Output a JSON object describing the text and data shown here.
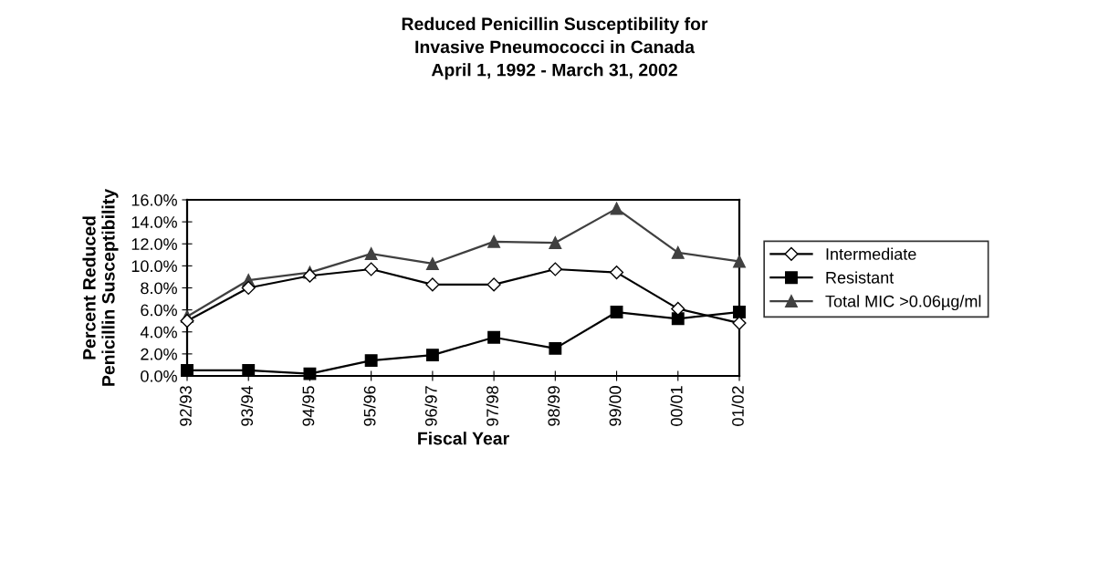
{
  "chart_data": {
    "type": "line",
    "title": "Reduced Penicillin Susceptibility for\nInvasive Pneumococci in Canada\nApril 1, 1992 - March 31, 2002",
    "xlabel": "Fiscal Year",
    "ylabel": "Percent Reduced\nPenicillin Susceptibility",
    "categories": [
      "92/93",
      "93/94",
      "94/95",
      "95/96",
      "96/97",
      "97/98",
      "98/99",
      "99/00",
      "00/01",
      "01/02"
    ],
    "series": [
      {
        "name": "Intermediate",
        "color": "#000000",
        "marker": "diamond",
        "values": [
          5.0,
          8.0,
          9.1,
          9.7,
          8.3,
          8.3,
          9.7,
          9.4,
          6.1,
          4.8
        ]
      },
      {
        "name": "Resistant",
        "color": "#000000",
        "marker": "square",
        "values": [
          0.5,
          0.5,
          0.2,
          1.4,
          1.9,
          3.5,
          2.5,
          5.8,
          5.2,
          5.8
        ]
      },
      {
        "name": "Total MIC >0.06µg/ml",
        "color": "#404040",
        "marker": "triangle",
        "values": [
          5.4,
          8.7,
          9.4,
          11.1,
          10.2,
          12.2,
          12.1,
          15.2,
          11.2,
          10.4
        ]
      }
    ],
    "ylim": [
      0,
      16
    ],
    "yticks": [
      {
        "value": 0,
        "label": "0.0%"
      },
      {
        "value": 2,
        "label": "2.0%"
      },
      {
        "value": 4,
        "label": "4.0%"
      },
      {
        "value": 6,
        "label": "6.0%"
      },
      {
        "value": 8,
        "label": "8.0%"
      },
      {
        "value": 10,
        "label": "10.0%"
      },
      {
        "value": 12,
        "label": "12.0%"
      },
      {
        "value": 14,
        "label": "14.0%"
      },
      {
        "value": 16,
        "label": "16.0%"
      }
    ],
    "grid": false,
    "legend": "right",
    "line_style": "solid"
  }
}
